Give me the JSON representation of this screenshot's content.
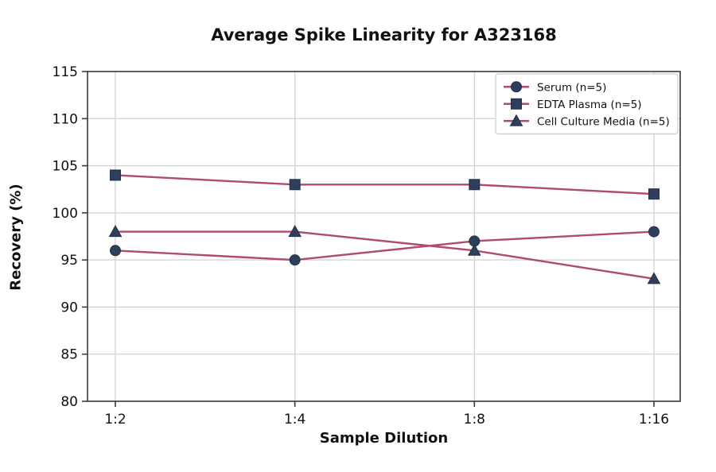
{
  "chart_data": {
    "type": "line",
    "title": "Average Spike Linearity for A323168",
    "xlabel": "Sample Dilution",
    "ylabel": "Recovery (%)",
    "categories": [
      "1:2",
      "1:4",
      "1:8",
      "1:16"
    ],
    "ylim": [
      80,
      115
    ],
    "yticks": [
      80,
      85,
      90,
      95,
      100,
      105,
      110,
      115
    ],
    "grid": true,
    "legend_position": "upper right",
    "series": [
      {
        "name": "Serum (n=5)",
        "marker": "circle",
        "values": [
          96,
          95,
          97,
          98
        ]
      },
      {
        "name": "EDTA Plasma (n=5)",
        "marker": "square",
        "values": [
          104,
          103,
          103,
          102
        ]
      },
      {
        "name": "Cell Culture Media (n=5)",
        "marker": "triangle",
        "values": [
          98,
          98,
          96,
          93
        ]
      }
    ],
    "colors": {
      "line": "#b04a6e",
      "marker_fill": "#2e3f5c",
      "marker_edge": "#22304a",
      "grid": "#d2d2d2",
      "spine": "#3a3a3a",
      "tick_text": "#111111",
      "legend_border": "#cccccc",
      "legend_bg": "#ffffff"
    }
  }
}
